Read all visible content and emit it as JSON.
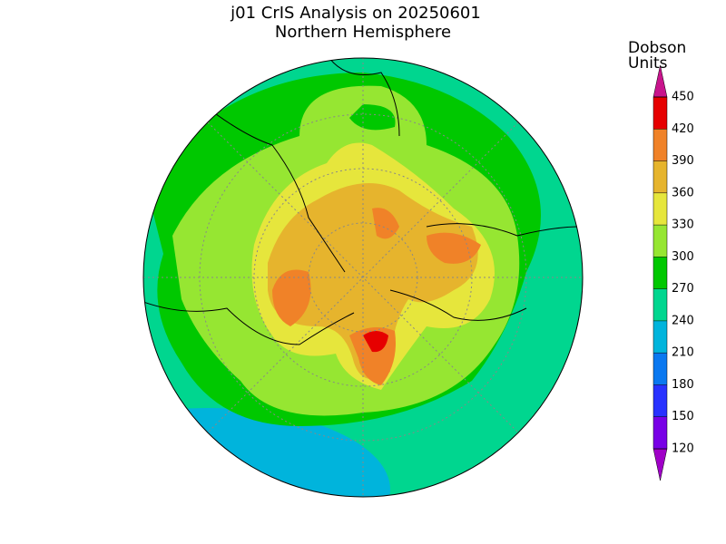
{
  "header": {
    "title": "j01 CrIS Analysis on 20250601",
    "subtitle": "Northern Hemisphere"
  },
  "colorbar": {
    "title": [
      "Dobson",
      "Units"
    ],
    "ticks": [
      120,
      150,
      180,
      210,
      240,
      270,
      300,
      330,
      360,
      390,
      420,
      450
    ],
    "colors": [
      "#a000c8",
      "#7800e6",
      "#2832ff",
      "#0a78f0",
      "#00b4dc",
      "#00d68f",
      "#00c800",
      "#96e632",
      "#e6e63c",
      "#e6b42d",
      "#f08228",
      "#e60000",
      "#c8148c"
    ]
  }
}
